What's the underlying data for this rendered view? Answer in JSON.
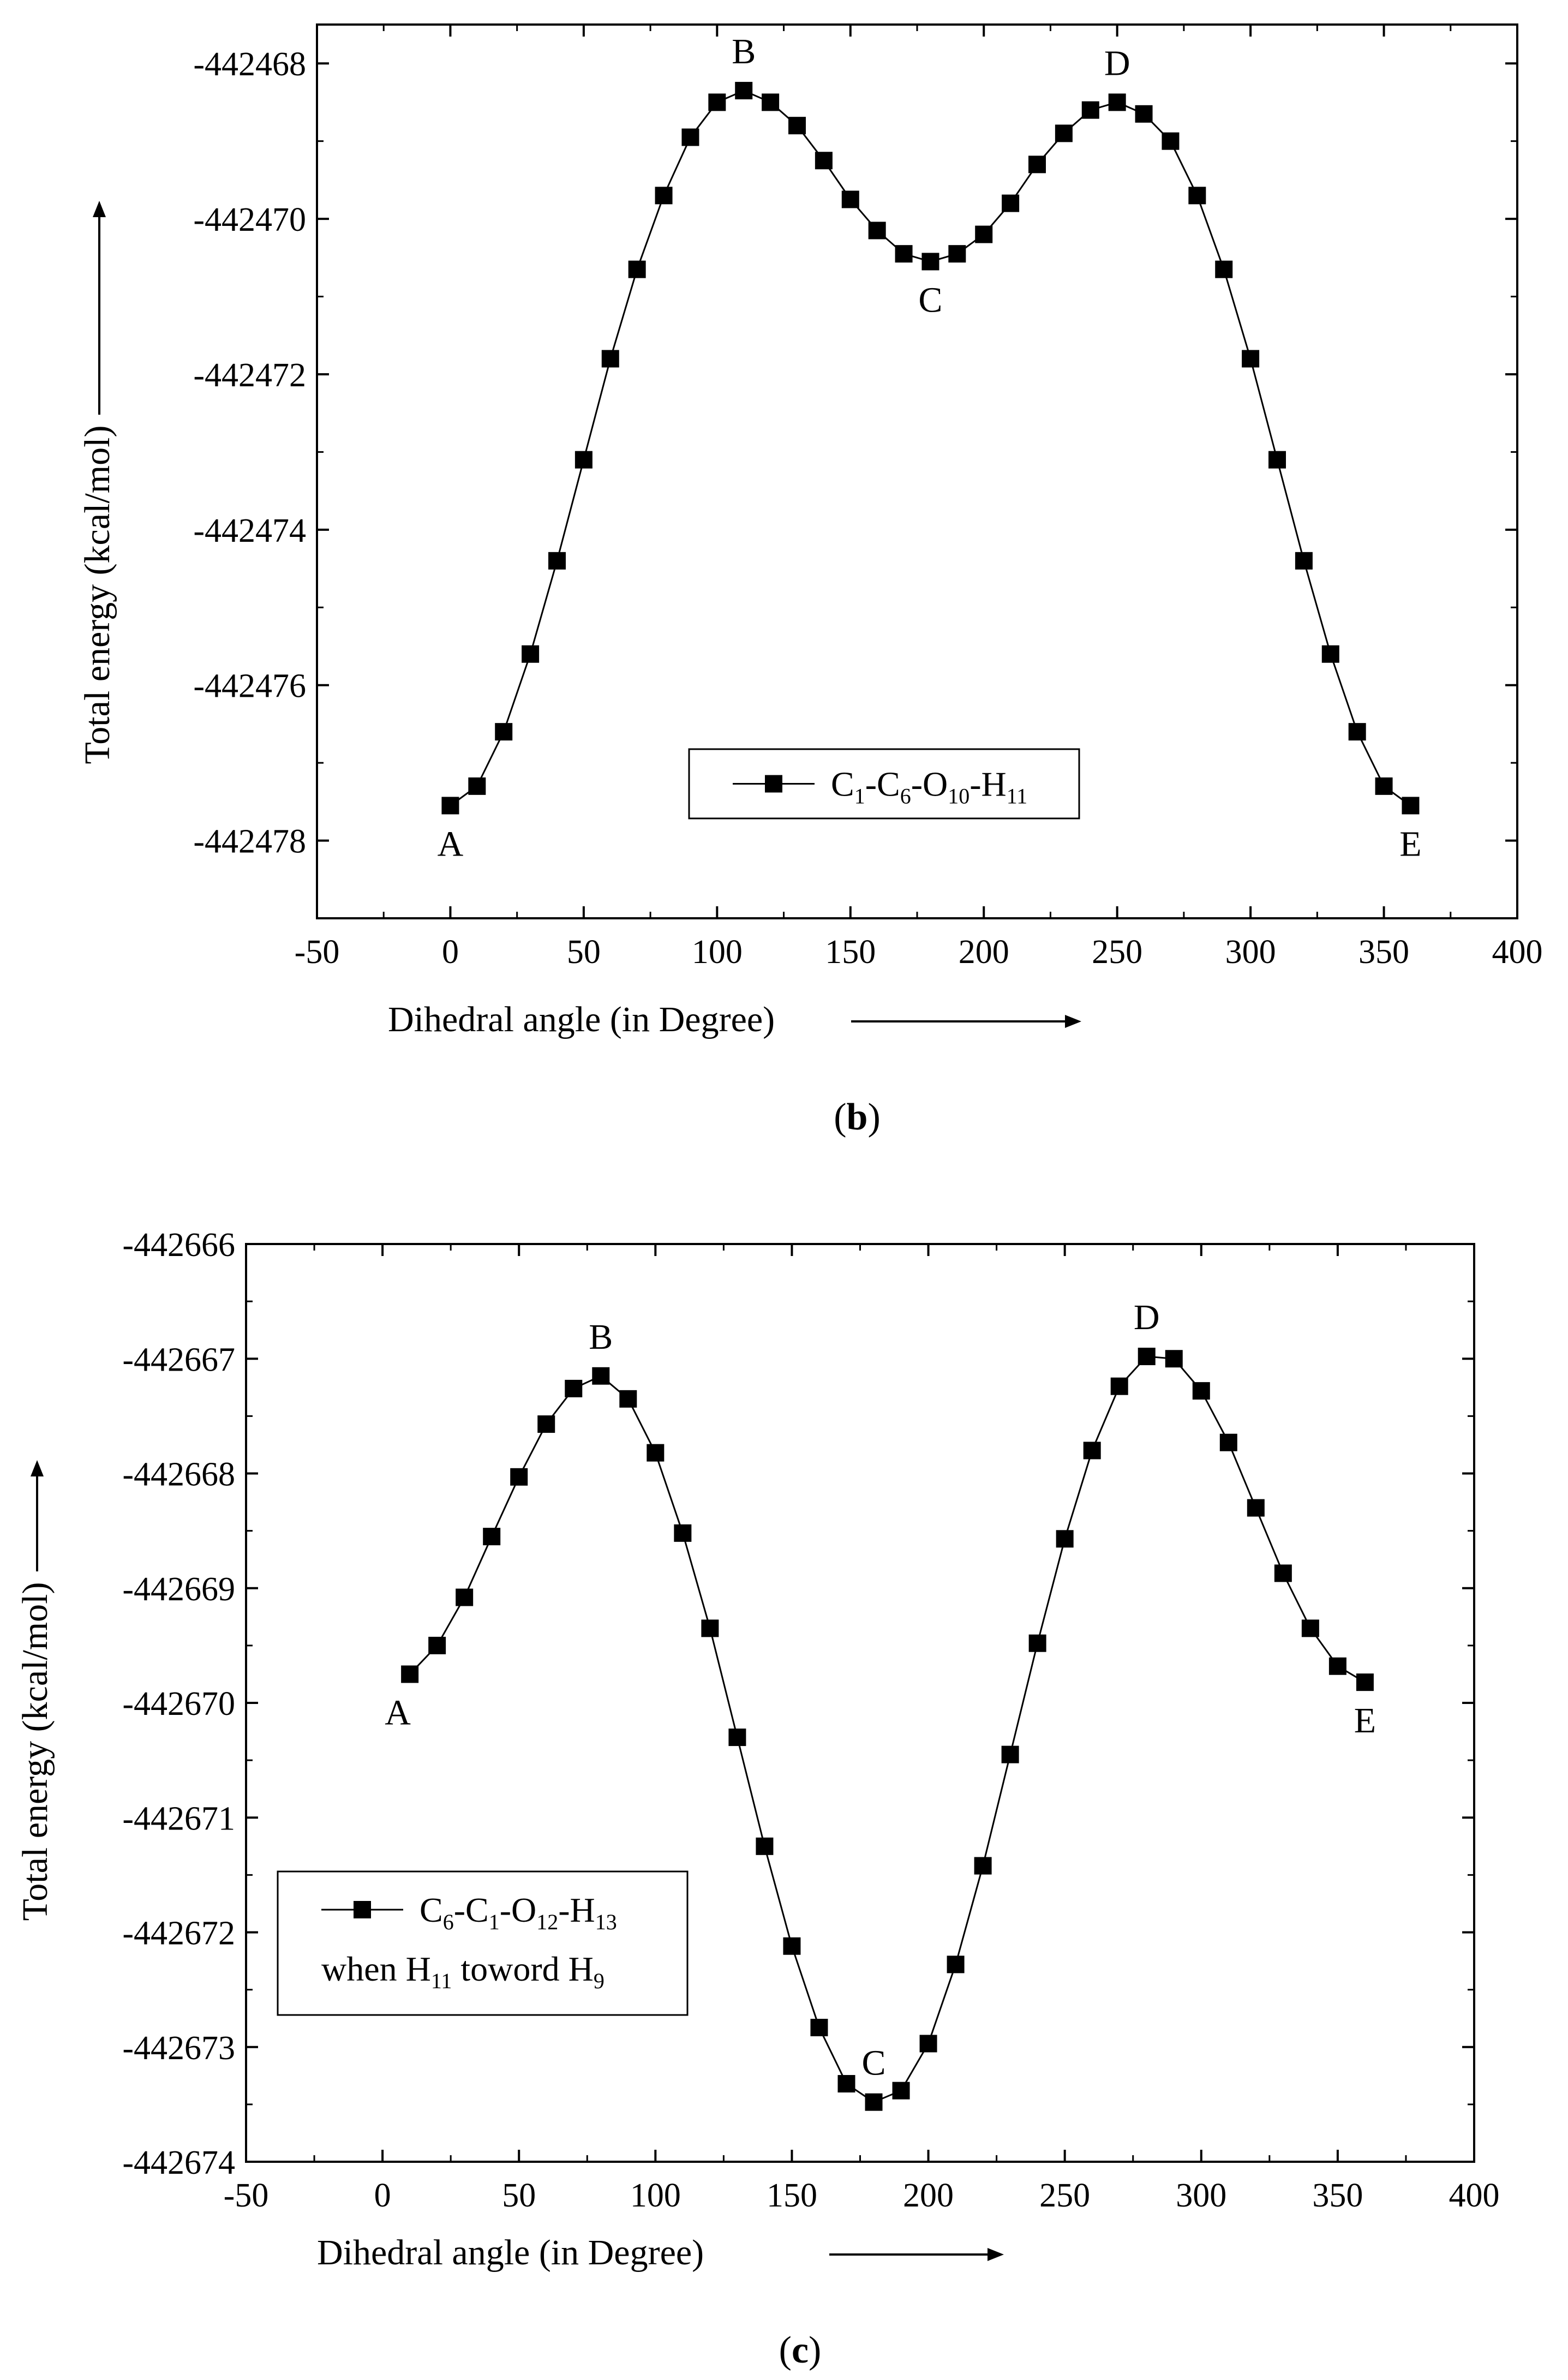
{
  "chart_data": [
    {
      "type": "line",
      "panel_label": {
        "open": "(",
        "letter": "b",
        "close": ")"
      },
      "xlabel": "Dihedral angle (in Degree)",
      "ylabel": "Total energy (kcal/mol)",
      "xlim": [
        -50,
        400
      ],
      "ylim": [
        -442479,
        -442467.5
      ],
      "xticks": [
        -50,
        0,
        50,
        100,
        150,
        200,
        250,
        300,
        350,
        400
      ],
      "xtick_labels": [
        "-50",
        "0",
        "50",
        "100",
        "150",
        "200",
        "250",
        "300",
        "350",
        "400"
      ],
      "yticks": [
        -442478,
        -442476,
        -442474,
        -442472,
        -442470,
        -442468
      ],
      "ytick_labels": [
        "-442478",
        "-442476",
        "-442474",
        "-442472",
        "-442470",
        "-442468"
      ],
      "grid": false,
      "legend_position": "bottom-center",
      "series": [
        {
          "name": "C1-C6-O10-H11",
          "legend_parts": [
            {
              "t": "C",
              "s": "1"
            },
            {
              "t": "-C",
              "s": "6"
            },
            {
              "t": "-O",
              "s": "10"
            },
            {
              "t": "-H",
              "s": "11"
            }
          ],
          "marker": "square",
          "color": "#000000",
          "x": [
            0,
            10,
            20,
            30,
            40,
            50,
            60,
            70,
            80,
            90,
            100,
            110,
            120,
            130,
            140,
            150,
            160,
            170,
            180,
            190,
            200,
            210,
            220,
            230,
            240,
            250,
            260,
            270,
            280,
            290,
            300,
            310,
            320,
            330,
            340,
            350,
            360
          ],
          "y": [
            -442477.55,
            -442477.3,
            -442476.6,
            -442475.6,
            -442474.4,
            -442473.1,
            -442471.8,
            -442470.65,
            -442469.7,
            -442468.95,
            -442468.5,
            -442468.35,
            -442468.5,
            -442468.8,
            -442469.25,
            -442469.75,
            -442470.15,
            -442470.45,
            -442470.55,
            -442470.45,
            -442470.2,
            -442469.8,
            -442469.3,
            -442468.9,
            -442468.6,
            -442468.5,
            -442468.65,
            -442469.0,
            -442469.7,
            -442470.65,
            -442471.8,
            -442473.1,
            -442474.4,
            -442475.6,
            -442476.6,
            -442477.3,
            -442477.55
          ]
        }
      ],
      "annotations": [
        {
          "text": "A",
          "x": 0,
          "y": -442477.55,
          "position": "below"
        },
        {
          "text": "B",
          "x": 110,
          "y": -442468.35,
          "position": "above"
        },
        {
          "text": "C",
          "x": 180,
          "y": -442470.55,
          "position": "below"
        },
        {
          "text": "D",
          "x": 250,
          "y": -442468.5,
          "position": "above"
        },
        {
          "text": "E",
          "x": 360,
          "y": -442477.55,
          "position": "below"
        }
      ]
    },
    {
      "type": "line",
      "panel_label": {
        "open": "(",
        "letter": "c",
        "close": ")"
      },
      "xlabel": "Dihedral angle (in Degree)",
      "ylabel": "Total energy (kcal/mol)",
      "xlim": [
        -50,
        400
      ],
      "ylim": [
        -442674,
        -442666
      ],
      "xticks": [
        -50,
        0,
        50,
        100,
        150,
        200,
        250,
        300,
        350,
        400
      ],
      "xtick_labels": [
        "-50",
        "0",
        "50",
        "100",
        "150",
        "200",
        "250",
        "300",
        "350",
        "400"
      ],
      "yticks": [
        -442674,
        -442673,
        -442672,
        -442671,
        -442670,
        -442669,
        -442668,
        -442667,
        -442666
      ],
      "ytick_labels": [
        "-442674",
        "-442673",
        "-442672",
        "-442671",
        "-442670",
        "-442669",
        "-442668",
        "-442667",
        "-442666"
      ],
      "grid": false,
      "legend_position": "bottom-left",
      "series": [
        {
          "name": "C6-C1-O12-H13",
          "legend_parts": [
            {
              "t": "C",
              "s": "6"
            },
            {
              "t": "-C",
              "s": "1"
            },
            {
              "t": "-O",
              "s": "12"
            },
            {
              "t": "-H",
              "s": "13"
            }
          ],
          "legend_line2_parts": [
            {
              "t": "when H",
              "s": "11"
            },
            {
              "t": " toword H",
              "s": "9"
            }
          ],
          "marker": "square",
          "color": "#000000",
          "x": [
            10,
            20,
            30,
            40,
            50,
            60,
            70,
            80,
            90,
            100,
            110,
            120,
            130,
            140,
            150,
            160,
            170,
            180,
            190,
            200,
            210,
            220,
            230,
            240,
            250,
            260,
            270,
            280,
            290,
            300,
            310,
            320,
            330,
            340,
            350,
            360
          ],
          "y": [
            -442669.75,
            -442669.5,
            -442669.08,
            -442668.55,
            -442668.03,
            -442667.57,
            -442667.26,
            -442667.15,
            -442667.35,
            -442667.82,
            -442668.52,
            -442669.35,
            -442670.3,
            -442671.25,
            -442672.12,
            -442672.83,
            -442673.32,
            -442673.48,
            -442673.38,
            -442672.97,
            -442672.28,
            -442671.42,
            -442670.45,
            -442669.48,
            -442668.57,
            -442667.8,
            -442667.24,
            -442666.98,
            -442667.0,
            -442667.28,
            -442667.73,
            -442668.3,
            -442668.87,
            -442669.35,
            -442669.68,
            -442669.82
          ]
        }
      ],
      "annotations": [
        {
          "text": "A",
          "x": 10,
          "y": -442669.75,
          "position": "below-left"
        },
        {
          "text": "B",
          "x": 80,
          "y": -442667.15,
          "position": "above"
        },
        {
          "text": "C",
          "x": 180,
          "y": -442673.48,
          "position": "above"
        },
        {
          "text": "D",
          "x": 280,
          "y": -442666.98,
          "position": "above"
        },
        {
          "text": "E",
          "x": 360,
          "y": -442669.82,
          "position": "below"
        }
      ]
    }
  ]
}
